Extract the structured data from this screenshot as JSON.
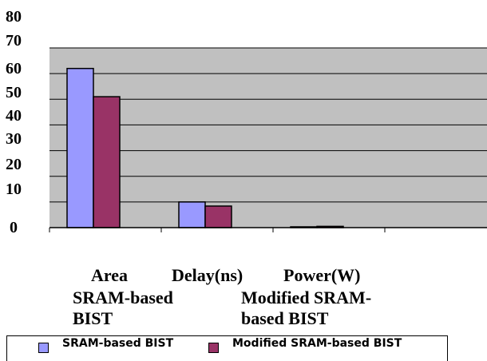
{
  "chart_data": {
    "type": "bar",
    "categories": [
      "Area",
      "Delay(ns)",
      "Power(W)"
    ],
    "series": [
      {
        "name": "SRAM-based BIST",
        "values": [
          62,
          10,
          0.3
        ],
        "color": "#9999ff"
      },
      {
        "name": "Modified SRAM-based BIST",
        "values": [
          51,
          8.4,
          0.5
        ],
        "color": "#993366"
      }
    ],
    "yticks": [
      0,
      10,
      20,
      30,
      40,
      50,
      60,
      70,
      80
    ],
    "ylim": [
      0,
      70
    ],
    "plot_background": "#c0c0c0",
    "grid": true,
    "legend_position": "bottom",
    "title": "",
    "xlabel": "",
    "ylabel": ""
  },
  "series_text": {
    "left_line1": "SRAM-based",
    "left_line2": "BIST",
    "right_line1": "Modified SRAM-",
    "right_line2": "based BIST"
  }
}
